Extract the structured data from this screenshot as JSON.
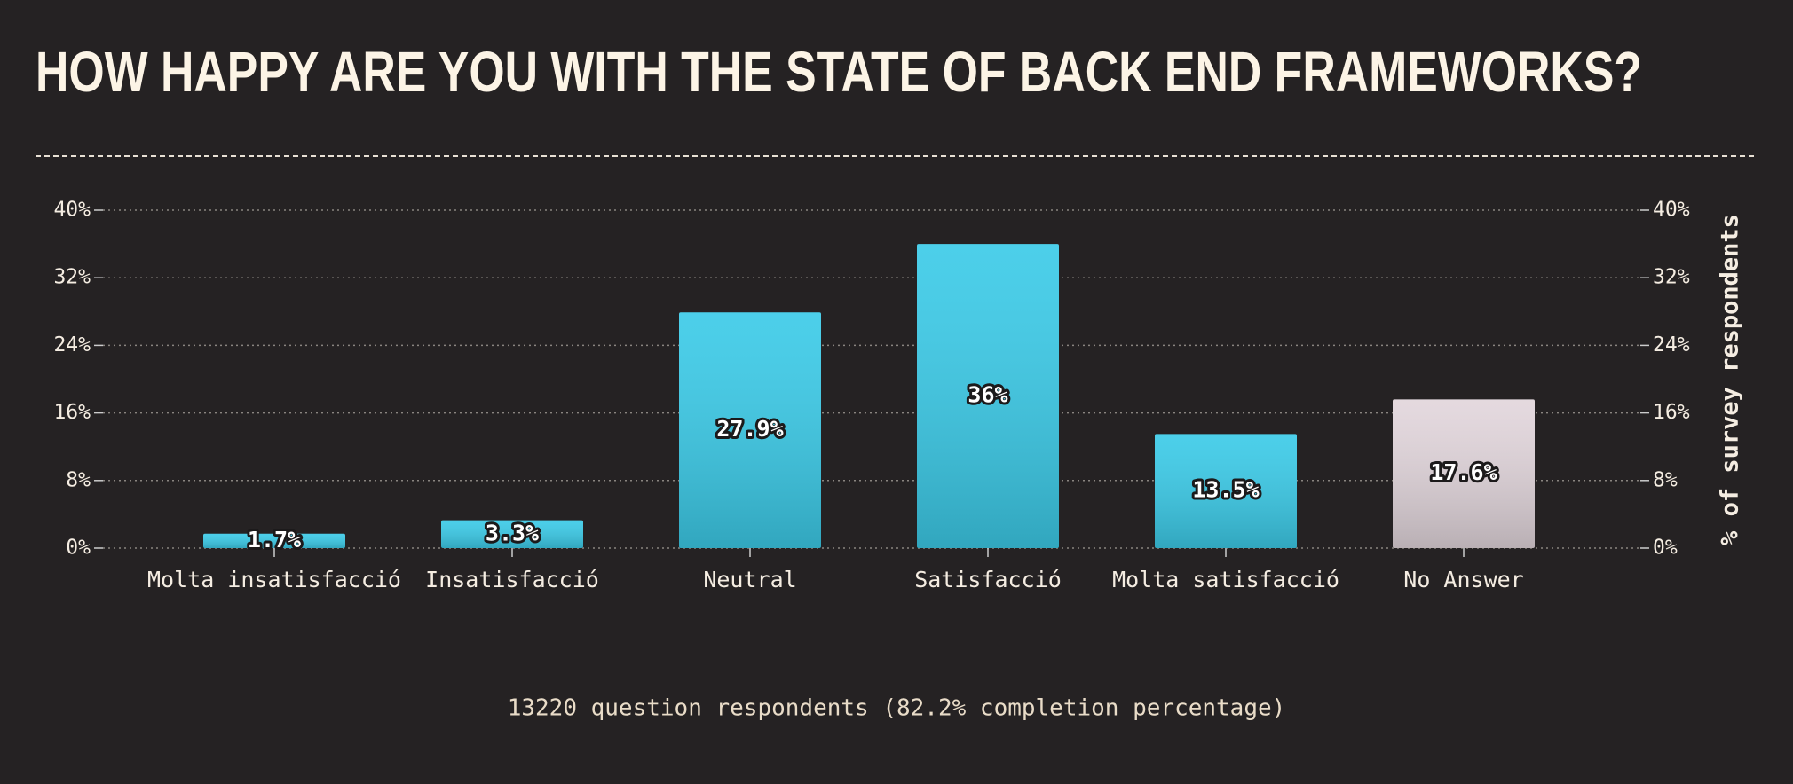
{
  "chart_data": {
    "type": "bar",
    "title": "HOW HAPPY ARE YOU WITH THE STATE OF BACK END FRAMEWORKS?",
    "categories": [
      "Molta insatisfacció",
      "Insatisfacció",
      "Neutral",
      "Satisfacció",
      "Molta satisfacció",
      "No Answer"
    ],
    "values": [
      1.7,
      3.3,
      27.9,
      36,
      13.5,
      17.6
    ],
    "value_labels": [
      "1.7%",
      "3.3%",
      "27.9%",
      "36%",
      "13.5%",
      "17.6%"
    ],
    "colors": [
      "#3ccbe8",
      "#3ccbe8",
      "#3ccbe8",
      "#3ccbe8",
      "#3ccbe8",
      "#e2d6dc"
    ],
    "ylim": [
      0,
      40
    ],
    "yticks": [
      {
        "value": 0,
        "label": "0%"
      },
      {
        "value": 8,
        "label": "8%"
      },
      {
        "value": 16,
        "label": "16%"
      },
      {
        "value": 24,
        "label": "24%"
      },
      {
        "value": 32,
        "label": "32%"
      },
      {
        "value": 40,
        "label": "40%"
      }
    ],
    "y2lim": [
      0,
      40
    ],
    "y2ticks": [
      {
        "value": 0,
        "label": "0%"
      },
      {
        "value": 8,
        "label": "8%"
      },
      {
        "value": 16,
        "label": "16%"
      },
      {
        "value": 24,
        "label": "24%"
      },
      {
        "value": 32,
        "label": "32%"
      },
      {
        "value": 40,
        "label": "40%"
      }
    ],
    "y2label": "% of survey respondents",
    "grid": true,
    "footer": "13220 question respondents (82.2% completion percentage)"
  }
}
